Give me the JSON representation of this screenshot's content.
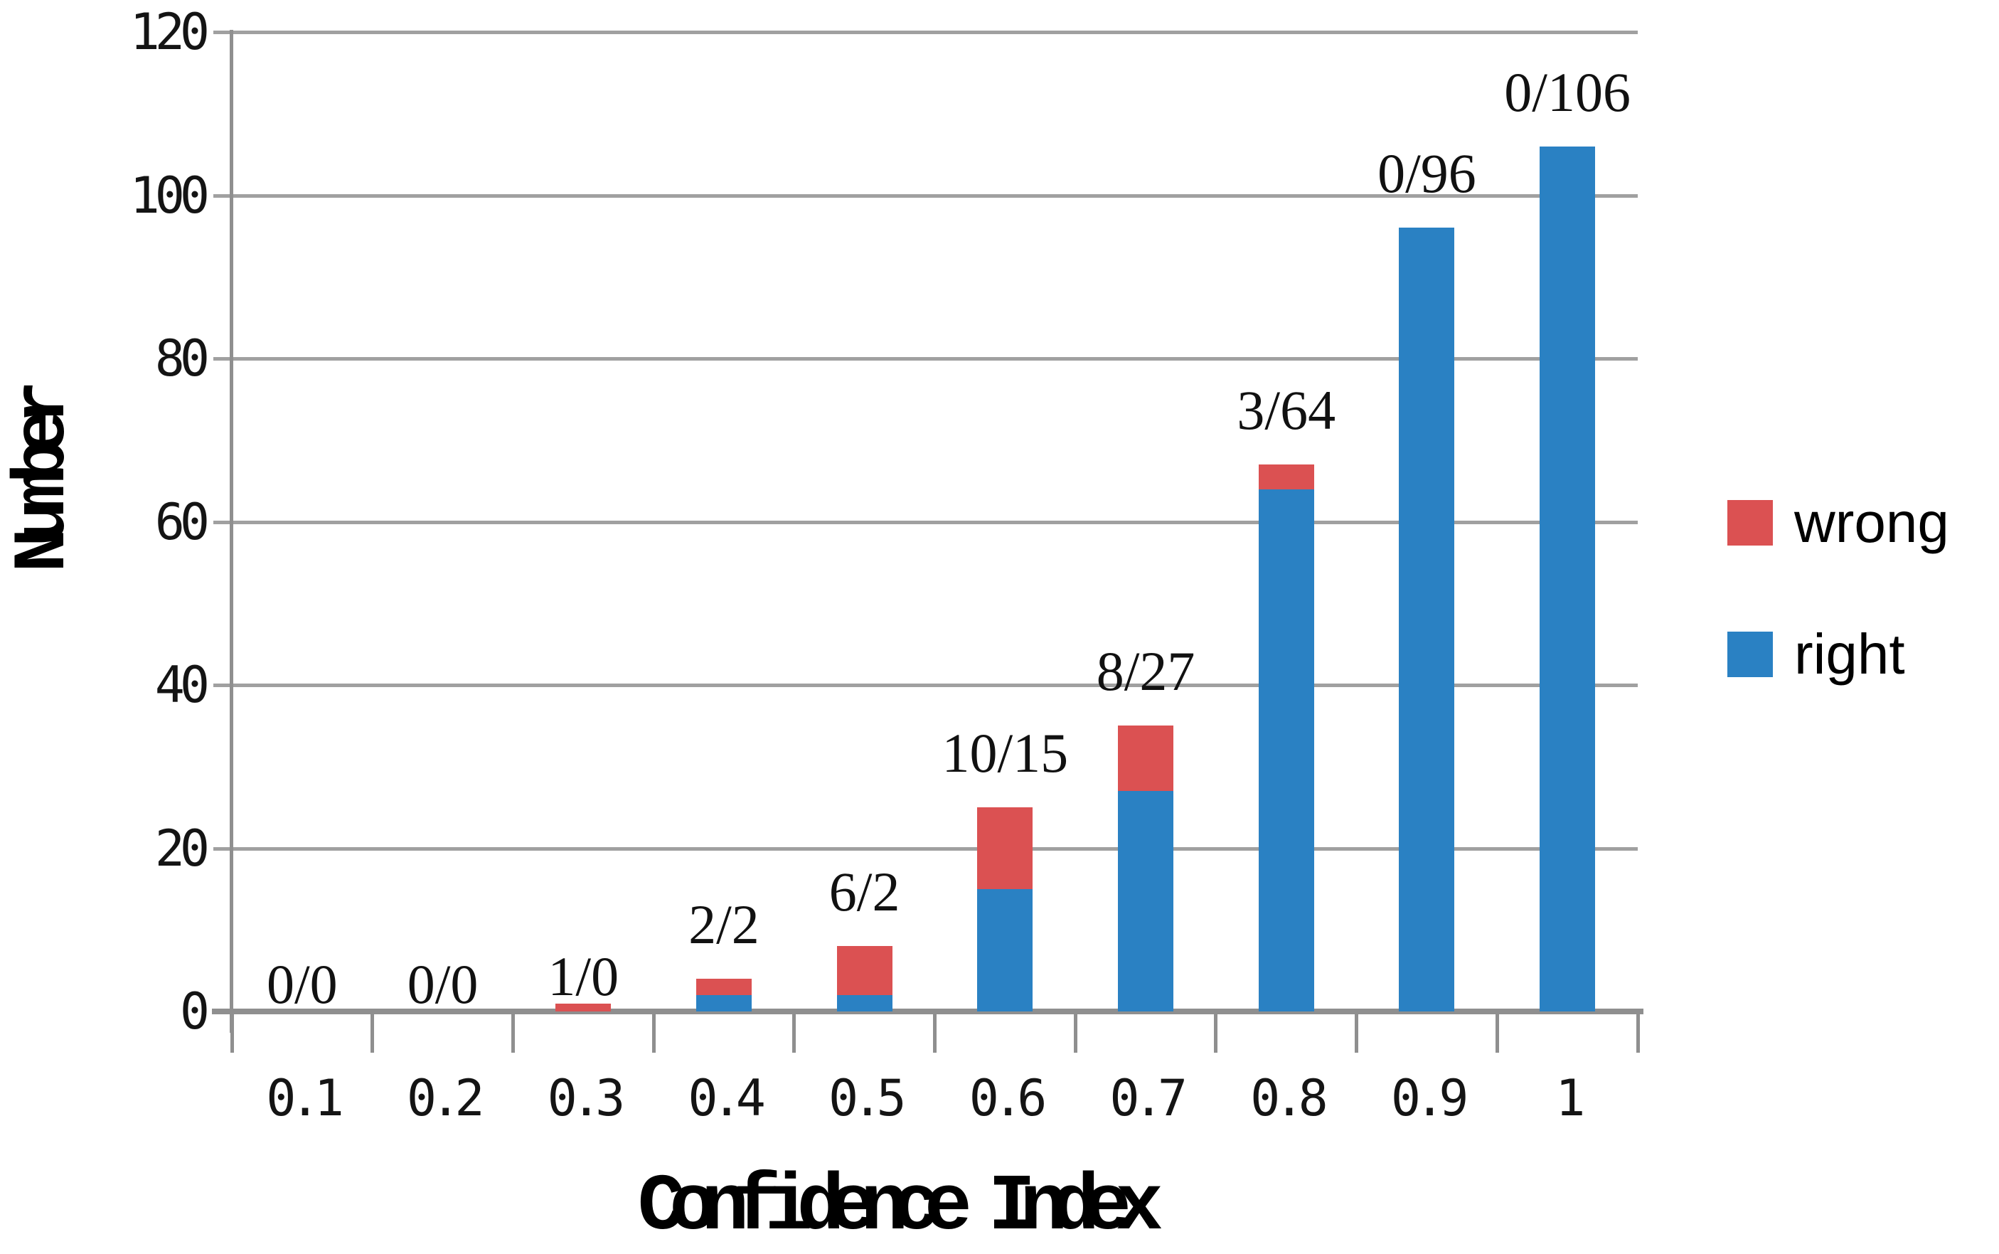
{
  "chart_data": {
    "type": "bar",
    "stacked": true,
    "title": "",
    "xlabel": "Confidence Index",
    "ylabel": "Number",
    "categories": [
      "0.1",
      "0.2",
      "0.3",
      "0.4",
      "0.5",
      "0.6",
      "0.7",
      "0.8",
      "0.9",
      "1"
    ],
    "series": [
      {
        "name": "right",
        "color": "#2A81C3",
        "values": [
          0,
          0,
          0,
          2,
          2,
          15,
          27,
          64,
          96,
          106
        ]
      },
      {
        "name": "wrong",
        "color": "#DB5152",
        "values": [
          0,
          0,
          1,
          2,
          6,
          10,
          8,
          3,
          0,
          0
        ]
      }
    ],
    "bar_labels": [
      "0/0",
      "0/0",
      "1/0",
      "2/2",
      "6/2",
      "10/15",
      "8/27",
      "3/64",
      "0/96",
      "0/106"
    ],
    "bar_label_format": "wrong/right",
    "totals": [
      0,
      0,
      1,
      4,
      8,
      25,
      35,
      67,
      96,
      106
    ],
    "ylim": [
      0,
      120
    ],
    "yticks": [
      0,
      20,
      40,
      60,
      80,
      100,
      120
    ],
    "grid": "horizontal",
    "legend_position": "right",
    "legend": [
      {
        "label": "wrong",
        "color": "#DB5152"
      },
      {
        "label": "right",
        "color": "#2A81C3"
      }
    ],
    "colors": {
      "right": "#2A81C3",
      "wrong": "#DB5152",
      "gridline": "#A0A0A0",
      "axis": "#8F8F8F",
      "text": "#141414",
      "background": "#FFFFFF"
    }
  }
}
